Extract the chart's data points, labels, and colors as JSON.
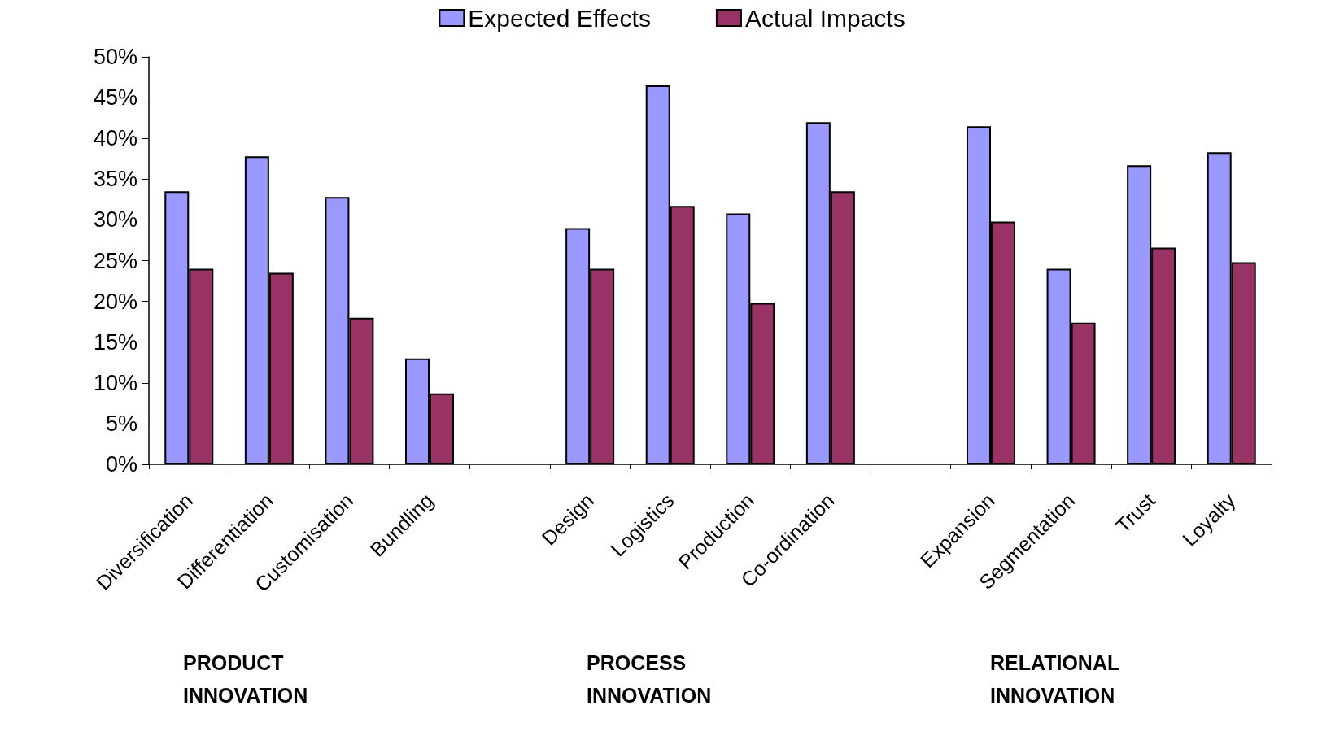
{
  "chart_data": {
    "type": "bar",
    "categories": [
      "Diversification",
      "Differentiation",
      "Customisation",
      "Bundling",
      null,
      "Design",
      "Logistics",
      "Production",
      "Co-ordination",
      null,
      "Expansion",
      "Segmentation",
      "Trust",
      "Loyalty"
    ],
    "series": [
      {
        "name": "Expected Effects",
        "color": "#9999ff",
        "values": [
          33.5,
          37.8,
          32.8,
          13,
          null,
          29,
          46.5,
          30.8,
          42,
          null,
          41.5,
          24,
          36.7,
          38.3
        ]
      },
      {
        "name": "Actual Impacts",
        "color": "#993366",
        "values": [
          24,
          23.5,
          18,
          8.7,
          null,
          24,
          31.7,
          19.8,
          33.5,
          null,
          29.8,
          17.4,
          26.6,
          24.8
        ]
      }
    ],
    "ylim": [
      0,
      50
    ],
    "yticks": [
      {
        "value": 0,
        "label": "0%"
      },
      {
        "value": 5,
        "label": "5%"
      },
      {
        "value": 10,
        "label": "10%"
      },
      {
        "value": 15,
        "label": "15%"
      },
      {
        "value": 20,
        "label": "20%"
      },
      {
        "value": 25,
        "label": "25%"
      },
      {
        "value": 30,
        "label": "30%"
      },
      {
        "value": 35,
        "label": "35%"
      },
      {
        "value": 40,
        "label": "40%"
      },
      {
        "value": 45,
        "label": "45%"
      },
      {
        "value": 50,
        "label": "50%"
      }
    ],
    "annotations": [
      "PRODUCT INNOVATION",
      "PROCESS INNOVATION",
      "RELATIONAL INNOVATION"
    ],
    "grid": false,
    "legend": "top"
  }
}
